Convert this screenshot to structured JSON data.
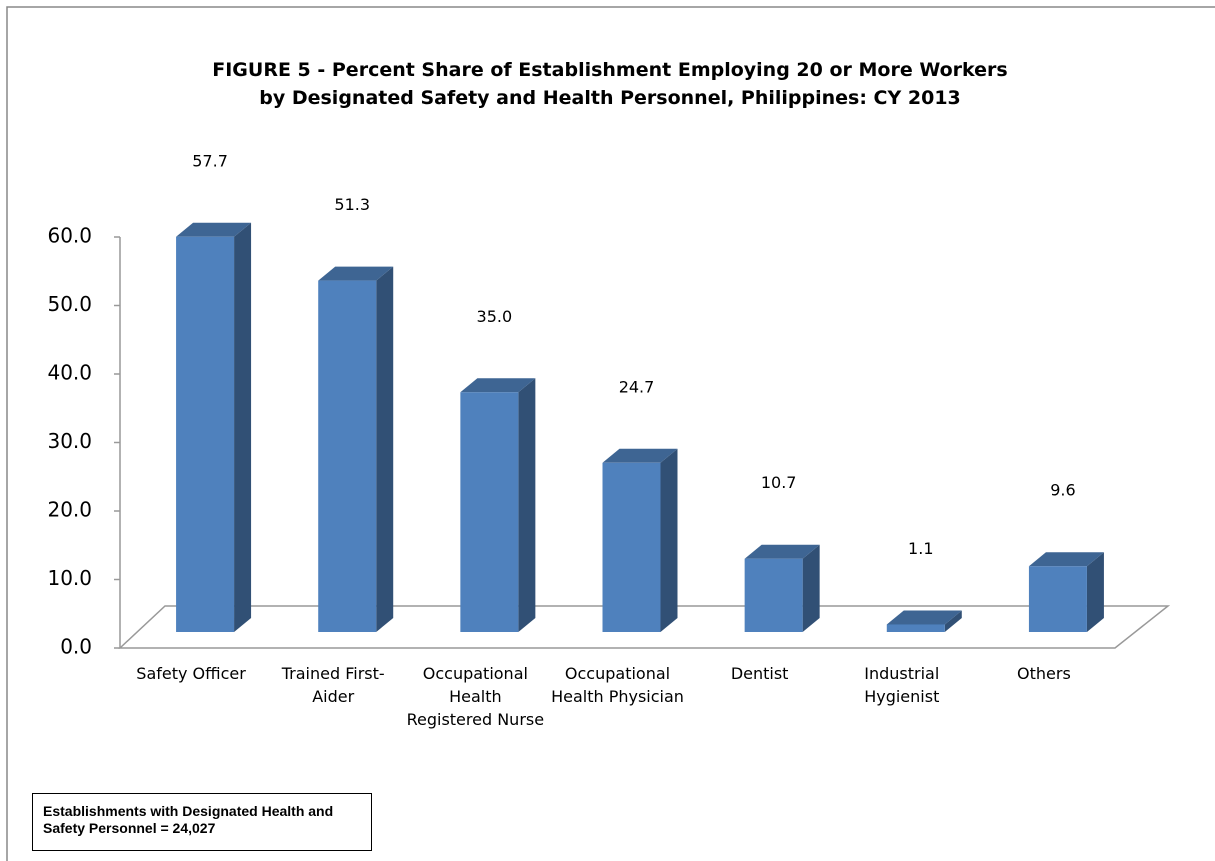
{
  "chart_data": {
    "type": "bar3d",
    "title": "FIGURE 5 - Percent Share of Establishment Employing 20 or More Workers by Designated Safety and Health Personnel, Philippines:  CY 2013",
    "categories": [
      "Safety Officer",
      "Trained First-Aider",
      "Occupational Health Registered Nurse",
      "Occupational Health Physician",
      "Dentist",
      "Industrial Hygienist",
      "Others"
    ],
    "values": [
      57.7,
      51.3,
      35.0,
      24.7,
      10.7,
      1.1,
      9.6
    ],
    "value_labels": [
      "57.7",
      "51.3",
      "35.0",
      "24.7",
      "10.7",
      "1.1",
      "9.6"
    ],
    "color": "#4f81bd",
    "ylim": [
      0,
      60
    ],
    "yticks": [
      {
        "value": 0,
        "label": "0.0"
      },
      {
        "value": 10,
        "label": "10.0"
      },
      {
        "value": 20,
        "label": "20.0"
      },
      {
        "value": 30,
        "label": "30.0"
      },
      {
        "value": 40,
        "label": "40.0"
      },
      {
        "value": 50,
        "label": "50.0"
      },
      {
        "value": 60,
        "label": "60.0"
      }
    ],
    "annotation": "Establishments with Designated Health and Safety Personnel = 24,027"
  }
}
